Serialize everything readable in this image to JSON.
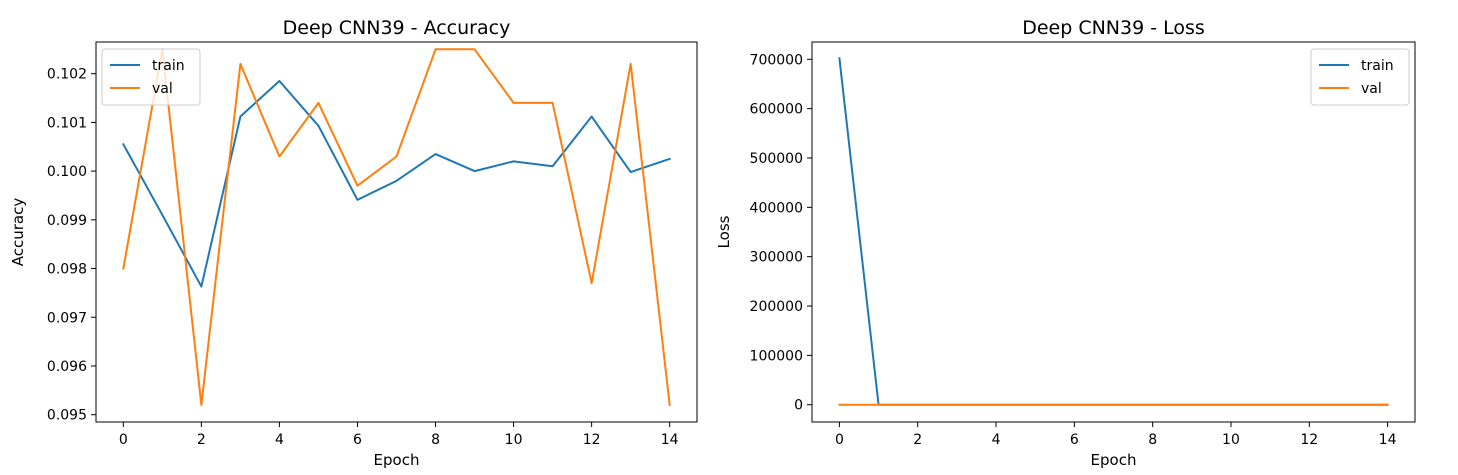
{
  "chart_data": [
    {
      "type": "line",
      "title": "Deep CNN39 - Accuracy",
      "xlabel": "Epoch",
      "ylabel": "Accuracy",
      "x": [
        0,
        1,
        2,
        3,
        4,
        5,
        6,
        7,
        8,
        9,
        10,
        11,
        12,
        13,
        14
      ],
      "xlim": [
        -0.7,
        14.7
      ],
      "ylim": [
        0.09485,
        0.10265
      ],
      "xticks": [
        0,
        2,
        4,
        6,
        8,
        10,
        12,
        14
      ],
      "yticks": [
        0.095,
        0.096,
        0.097,
        0.098,
        0.099,
        0.1,
        0.101,
        0.102
      ],
      "ytick_decimals": 3,
      "legend_position": "top-left",
      "series": [
        {
          "name": "train",
          "color": "#1f77b4",
          "values": [
            0.10055,
            0.0991,
            0.09763,
            0.10112,
            0.10185,
            0.10093,
            0.09941,
            0.0998,
            0.10035,
            0.1,
            0.1002,
            0.1001,
            0.10112,
            0.09998,
            0.10025
          ]
        },
        {
          "name": "val",
          "color": "#ff7f0e",
          "values": [
            0.098,
            0.1025,
            0.0952,
            0.1022,
            0.1003,
            0.1014,
            0.0997,
            0.1003,
            0.1025,
            0.1025,
            0.1014,
            0.1014,
            0.0977,
            0.1022,
            0.0952
          ]
        }
      ]
    },
    {
      "type": "line",
      "title": "Deep CNN39 - Loss",
      "xlabel": "Epoch",
      "ylabel": "Loss",
      "x": [
        0,
        1,
        2,
        3,
        4,
        5,
        6,
        7,
        8,
        9,
        10,
        11,
        12,
        13,
        14
      ],
      "xlim": [
        -0.7,
        14.7
      ],
      "ylim": [
        -35000,
        735000
      ],
      "xticks": [
        0,
        2,
        4,
        6,
        8,
        10,
        12,
        14
      ],
      "yticks": [
        0,
        100000,
        200000,
        300000,
        400000,
        500000,
        600000,
        700000
      ],
      "ytick_decimals": 0,
      "legend_position": "top-right",
      "series": [
        {
          "name": "train",
          "color": "#1f77b4",
          "values": [
            702000,
            2.3,
            2.3,
            2.3,
            2.3,
            2.3,
            2.3,
            2.3,
            2.3,
            2.3,
            2.3,
            2.3,
            2.3,
            2.3,
            2.3
          ]
        },
        {
          "name": "val",
          "color": "#ff7f0e",
          "values": [
            2.3,
            2.3,
            2.3,
            2.3,
            2.3,
            2.3,
            2.3,
            2.3,
            2.3,
            2.3,
            2.3,
            2.3,
            2.3,
            2.3,
            2.3
          ]
        }
      ]
    }
  ]
}
